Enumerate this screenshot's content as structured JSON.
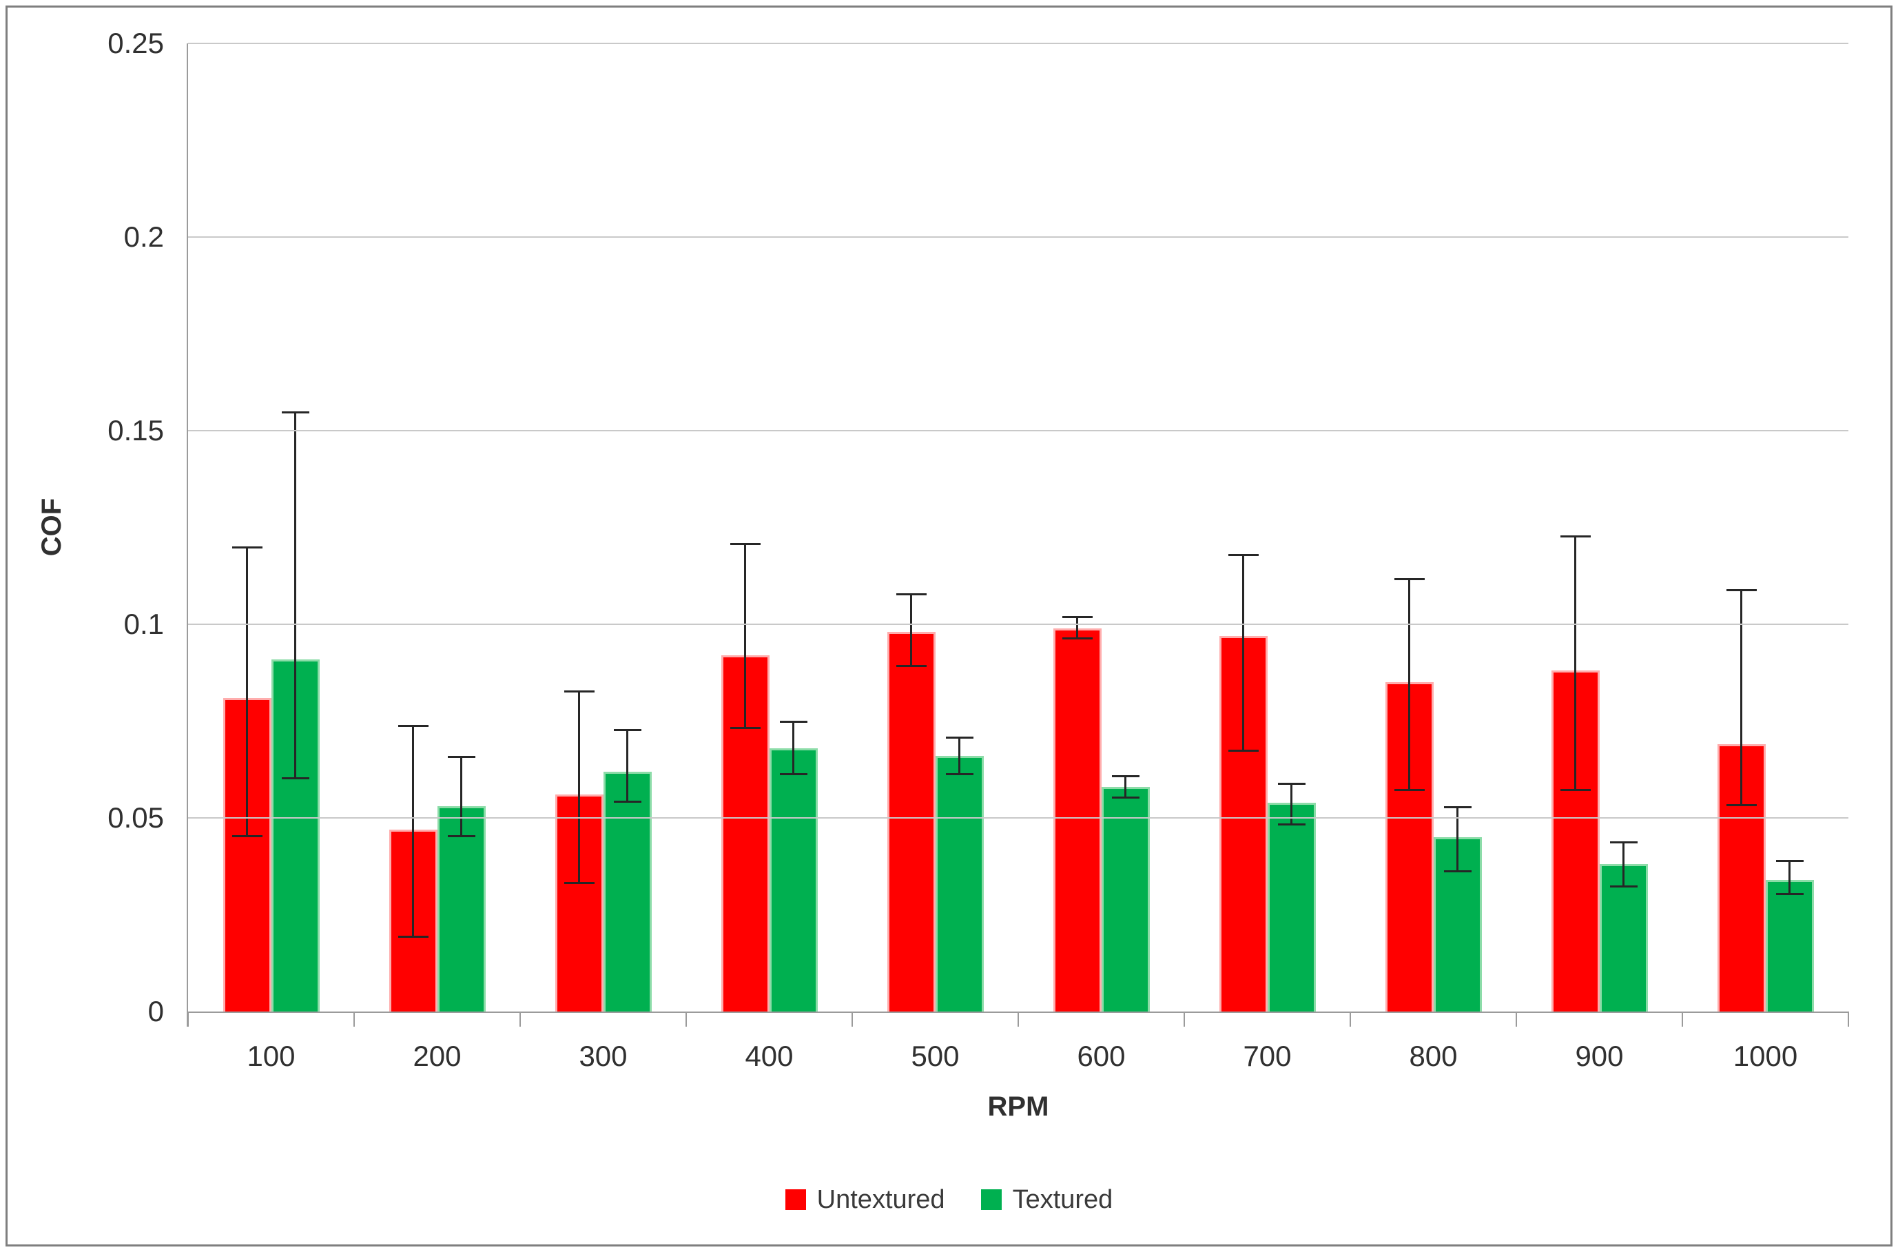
{
  "chart_data": {
    "type": "bar",
    "title": "",
    "xlabel": "RPM",
    "ylabel": "COF",
    "categories": [
      "100",
      "200",
      "300",
      "400",
      "500",
      "600",
      "700",
      "800",
      "900",
      "1000"
    ],
    "y_tick_labels": [
      "0",
      "0.05",
      "0.1",
      "0.15",
      "0.2",
      "0.25"
    ],
    "y_tick_values": [
      0,
      0.05,
      0.1,
      0.15,
      0.2,
      0.25
    ],
    "ylim": [
      0,
      0.25
    ],
    "grid": true,
    "legend_position": "bottom",
    "series": [
      {
        "name": "Untextured",
        "color": "#FF0000",
        "values": [
          0.081,
          0.047,
          0.056,
          0.092,
          0.098,
          0.099,
          0.097,
          0.085,
          0.088,
          0.069
        ],
        "whisker_high": [
          0.12,
          0.074,
          0.083,
          0.121,
          0.108,
          0.102,
          0.118,
          0.112,
          0.123,
          0.109
        ],
        "whisker_low": [
          0.045,
          0.019,
          0.033,
          0.073,
          0.089,
          0.096,
          0.067,
          0.057,
          0.057,
          0.053
        ]
      },
      {
        "name": "Textured",
        "color": "#00B050",
        "values": [
          0.091,
          0.053,
          0.062,
          0.068,
          0.066,
          0.058,
          0.054,
          0.045,
          0.038,
          0.034
        ],
        "whisker_high": [
          0.155,
          0.066,
          0.073,
          0.075,
          0.071,
          0.061,
          0.059,
          0.053,
          0.044,
          0.039
        ],
        "whisker_low": [
          0.06,
          0.045,
          0.054,
          0.061,
          0.061,
          0.055,
          0.048,
          0.036,
          0.032,
          0.03
        ]
      }
    ],
    "error_bar_color": "#262626",
    "gridline_color": "#C9C9C9",
    "axis_line_color": "#9B9B9B"
  }
}
